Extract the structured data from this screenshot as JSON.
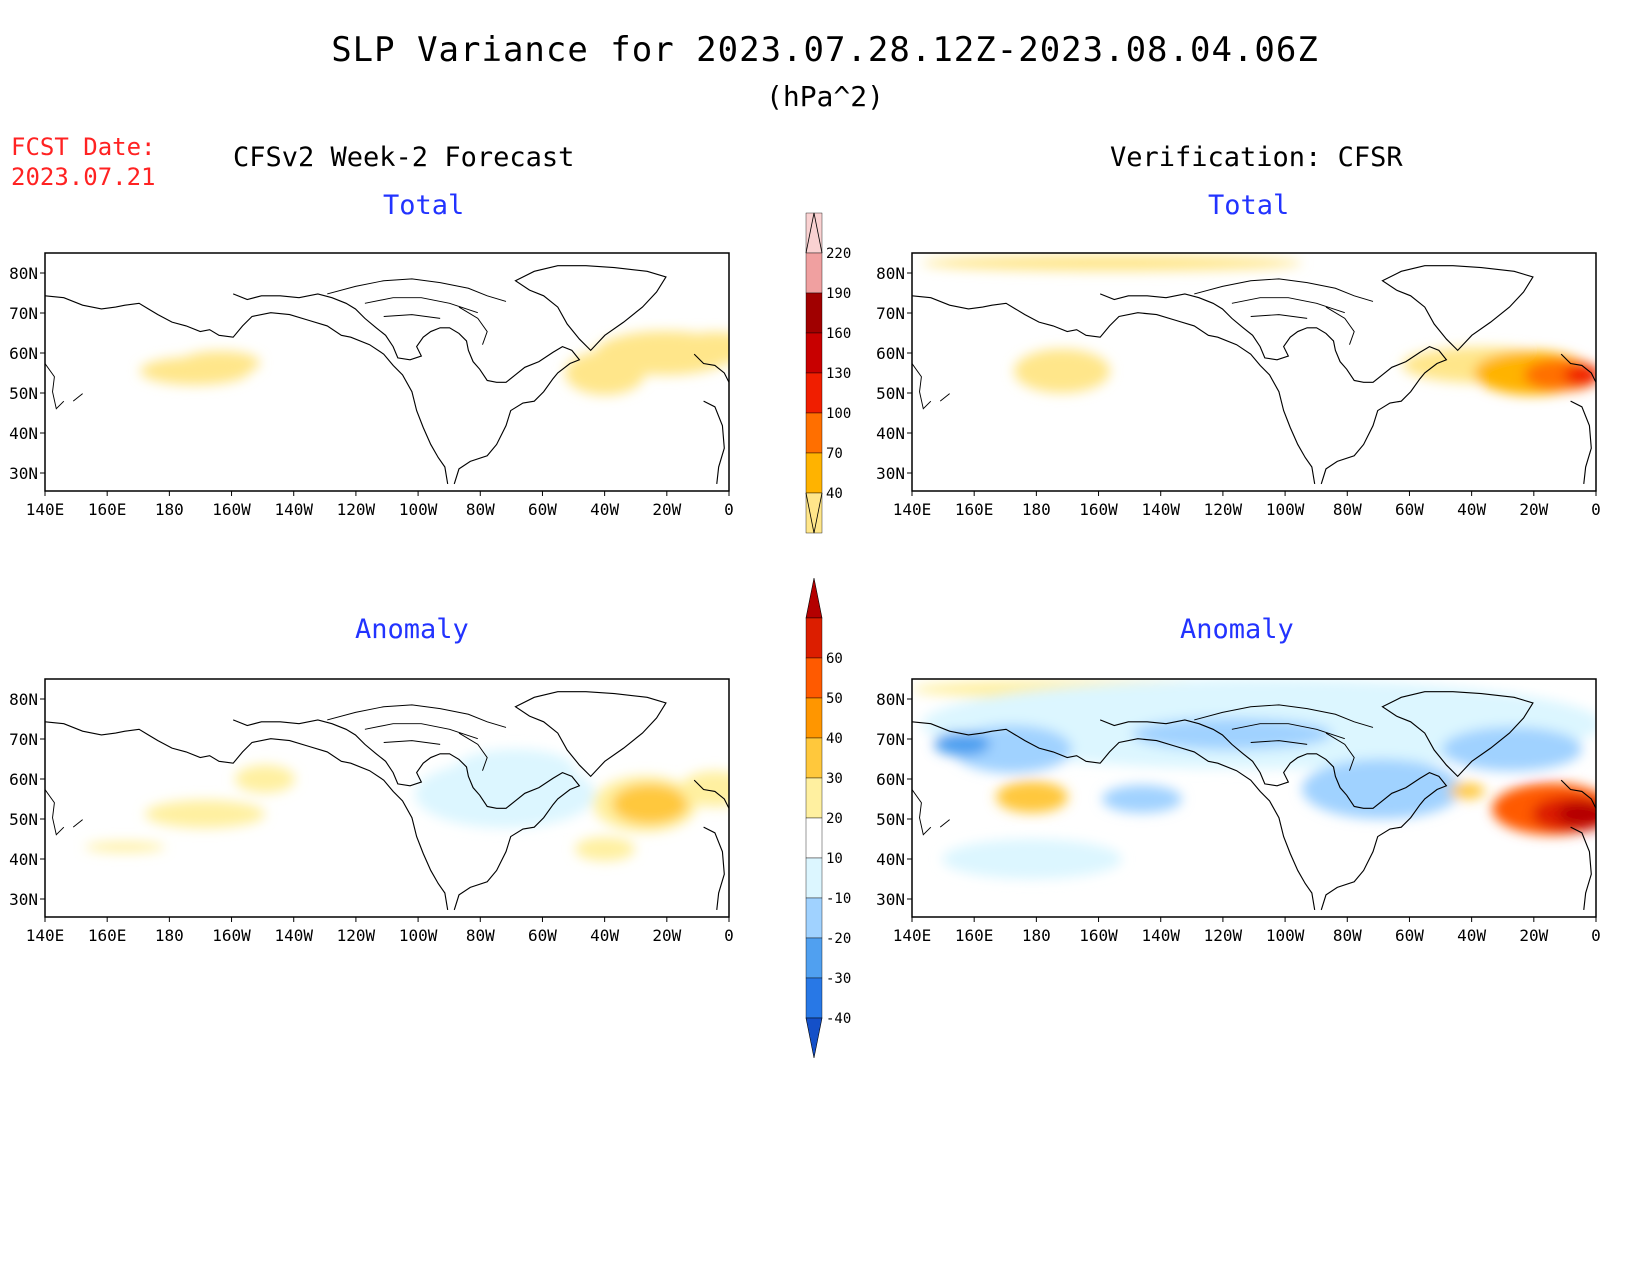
{
  "title": "SLP Variance for 2023.07.28.12Z-2023.08.04.06Z",
  "units": "(hPa^2)",
  "fcst_label": "FCST Date:",
  "fcst_date": "2023.07.21",
  "left_header": "CFSv2 Week-2 Forecast",
  "right_header": "Verification: CFSR",
  "total_label": "Total",
  "anomaly_label": "Anomaly",
  "lon_ticks": [
    "140E",
    "160E",
    "180",
    "160W",
    "140W",
    "120W",
    "100W",
    "80W",
    "60W",
    "40W",
    "20W",
    "0"
  ],
  "lat_ticks": [
    "80N",
    "70N",
    "60N",
    "50N",
    "40N",
    "30N"
  ],
  "total_colorbar": {
    "levels": [
      "40",
      "70",
      "100",
      "130",
      "160",
      "190",
      "220"
    ],
    "colors": [
      "#ffe68a",
      "#ffb300",
      "#ff6f00",
      "#f01e00",
      "#c80000",
      "#a00000",
      "#f0a0a0",
      "#fad2d2",
      "#fff0f0"
    ]
  },
  "anomaly_colorbar": {
    "levels": [
      "60",
      "50",
      "40",
      "30",
      "20",
      "10",
      "-10",
      "-20",
      "-30",
      "-40"
    ],
    "colors": [
      "#b40000",
      "#dc1e00",
      "#ff5a00",
      "#ff9600",
      "#ffc83c",
      "#fff0a0",
      "#ffffff",
      "#dcf6ff",
      "#a0d2ff",
      "#50a0f0",
      "#2878e6",
      "#1450c8"
    ]
  },
  "chart_data": [
    {
      "type": "heatmap",
      "title": "Total",
      "panel": "CFSv2 Week-2 Forecast",
      "lon_range": [
        "140E",
        "0"
      ],
      "lat_range": [
        "25N",
        "85N"
      ],
      "features": [
        {
          "region": "Gulf of Alaska",
          "value_range": [
            40,
            70
          ]
        },
        {
          "region": "Newfoundland / North Atlantic",
          "value_range": [
            40,
            70
          ]
        }
      ]
    },
    {
      "type": "heatmap",
      "title": "Total",
      "panel": "Verification: CFSR",
      "lon_range": [
        "140E",
        "0"
      ],
      "lat_range": [
        "25N",
        "85N"
      ],
      "features": [
        {
          "region": "Arctic 80N band",
          "value_range": [
            40,
            70
          ]
        },
        {
          "region": "Bering Sea",
          "value_range": [
            40,
            70
          ]
        },
        {
          "region": "North Atlantic",
          "value_range": [
            40,
            70
          ]
        },
        {
          "region": "West of British Isles",
          "value_range": [
            130,
            190
          ]
        }
      ]
    },
    {
      "type": "heatmap",
      "title": "Anomaly",
      "panel": "CFSv2 Week-2 Forecast",
      "lon_range": [
        "140E",
        "0"
      ],
      "lat_range": [
        "25N",
        "85N"
      ],
      "features": [
        {
          "region": "Gulf of Alaska",
          "value_range": [
            10,
            20
          ]
        },
        {
          "region": "Newfoundland",
          "value_range": [
            20,
            30
          ]
        },
        {
          "region": "Hudson Bay",
          "value_range": [
            -20,
            -10
          ]
        }
      ]
    },
    {
      "type": "heatmap",
      "title": "Anomaly",
      "panel": "Verification: CFSR",
      "lon_range": [
        "140E",
        "0"
      ],
      "lat_range": [
        "25N",
        "85N"
      ],
      "features": [
        {
          "region": "West of British Isles",
          "value_range": [
            40,
            60
          ]
        },
        {
          "region": "Bering Sea",
          "value_range": [
            20,
            30
          ]
        },
        {
          "region": "Kamchatka",
          "value_range": [
            -30,
            -20
          ]
        },
        {
          "region": "Hudson Bay",
          "value_range": [
            -30,
            -20
          ]
        },
        {
          "region": "Arctic Canada",
          "value_range": [
            -20,
            -10
          ]
        }
      ]
    }
  ]
}
